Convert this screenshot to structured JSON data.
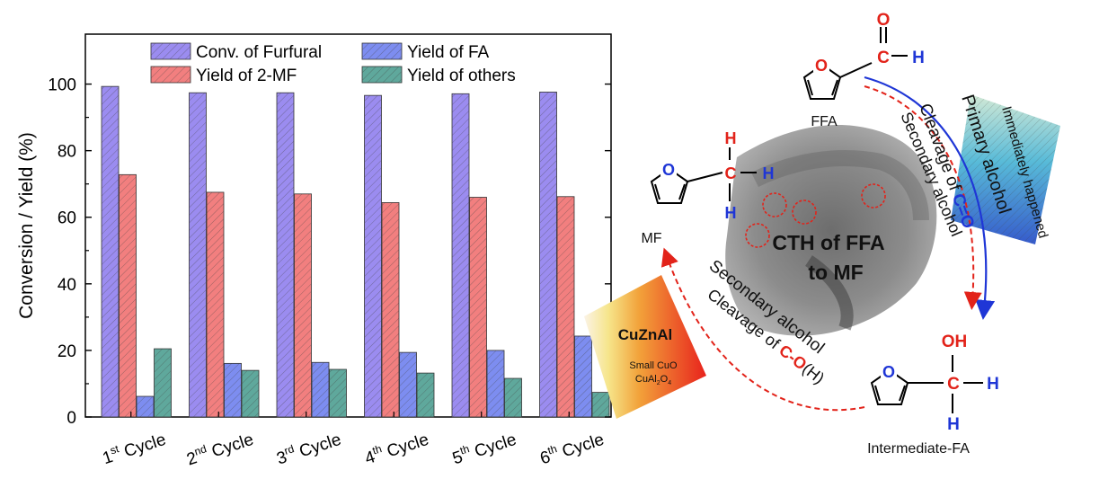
{
  "chart_data": {
    "type": "bar",
    "ylabel": "Conversion / Yield (%)",
    "xlabel": "",
    "ylim": [
      0,
      115
    ],
    "yticks": [
      0,
      20,
      40,
      60,
      80,
      100
    ],
    "grid": false,
    "legend_position": "top",
    "categories": [
      {
        "base": "1",
        "sup": "st",
        "rest": " Cycle"
      },
      {
        "base": "2",
        "sup": "nd",
        "rest": " Cycle"
      },
      {
        "base": "3",
        "sup": "rd",
        "rest": " Cycle"
      },
      {
        "base": "4",
        "sup": "th",
        "rest": " Cycle"
      },
      {
        "base": "5",
        "sup": "th",
        "rest": " Cycle"
      },
      {
        "base": "6",
        "sup": "th",
        "rest": " Cycle"
      }
    ],
    "series": [
      {
        "name": "Conv. of Furfural",
        "color": "#9b8cf0",
        "values": [
          99.3,
          97.4,
          97.4,
          96.6,
          97.1,
          97.6
        ]
      },
      {
        "name": "Yield of 2-MF",
        "color": "#f27f7f",
        "values": [
          72.8,
          67.5,
          67.0,
          64.4,
          66.0,
          66.2
        ]
      },
      {
        "name": "Yield of FA",
        "color": "#7d8df0",
        "values": [
          6.2,
          16.1,
          16.4,
          19.4,
          20.0,
          24.3
        ]
      },
      {
        "name": "Yield of others",
        "color": "#5fa89c",
        "values": [
          20.5,
          14.0,
          14.3,
          13.2,
          11.6,
          7.4
        ]
      }
    ]
  },
  "scheme": {
    "center_title_line1": "CTH of FFA",
    "center_title_line2": "to MF",
    "ffa_label": "FFA",
    "fa_label": "Intermediate-FA",
    "mf_label": "MF",
    "atom_O": "O",
    "atom_C": "C",
    "atom_H": "H",
    "atom_OH": "OH",
    "primary_alcohol": "Primary alcohol",
    "immediately": "Immediately happened",
    "cleavage_co_double_prefix": "Cleavage of ",
    "cleavage_co_double_bond": "C=O",
    "secondary_alcohol_top": "Secondary alcohol",
    "secondary_alcohol_bottom": "Secondary alcohol",
    "cleavage_co_h_prefix": "Cleavage of ",
    "cleavage_co_h_bond": "C-O",
    "cleavage_co_h_suffix": "(H)",
    "catalyst_name": "CuZnAl",
    "catalyst_line1": "Small CuO",
    "catalyst_line2_base": "CuAl",
    "catalyst_line2_sub1": "2",
    "catalyst_line2_mid": "O",
    "catalyst_line2_sub2": "4"
  }
}
